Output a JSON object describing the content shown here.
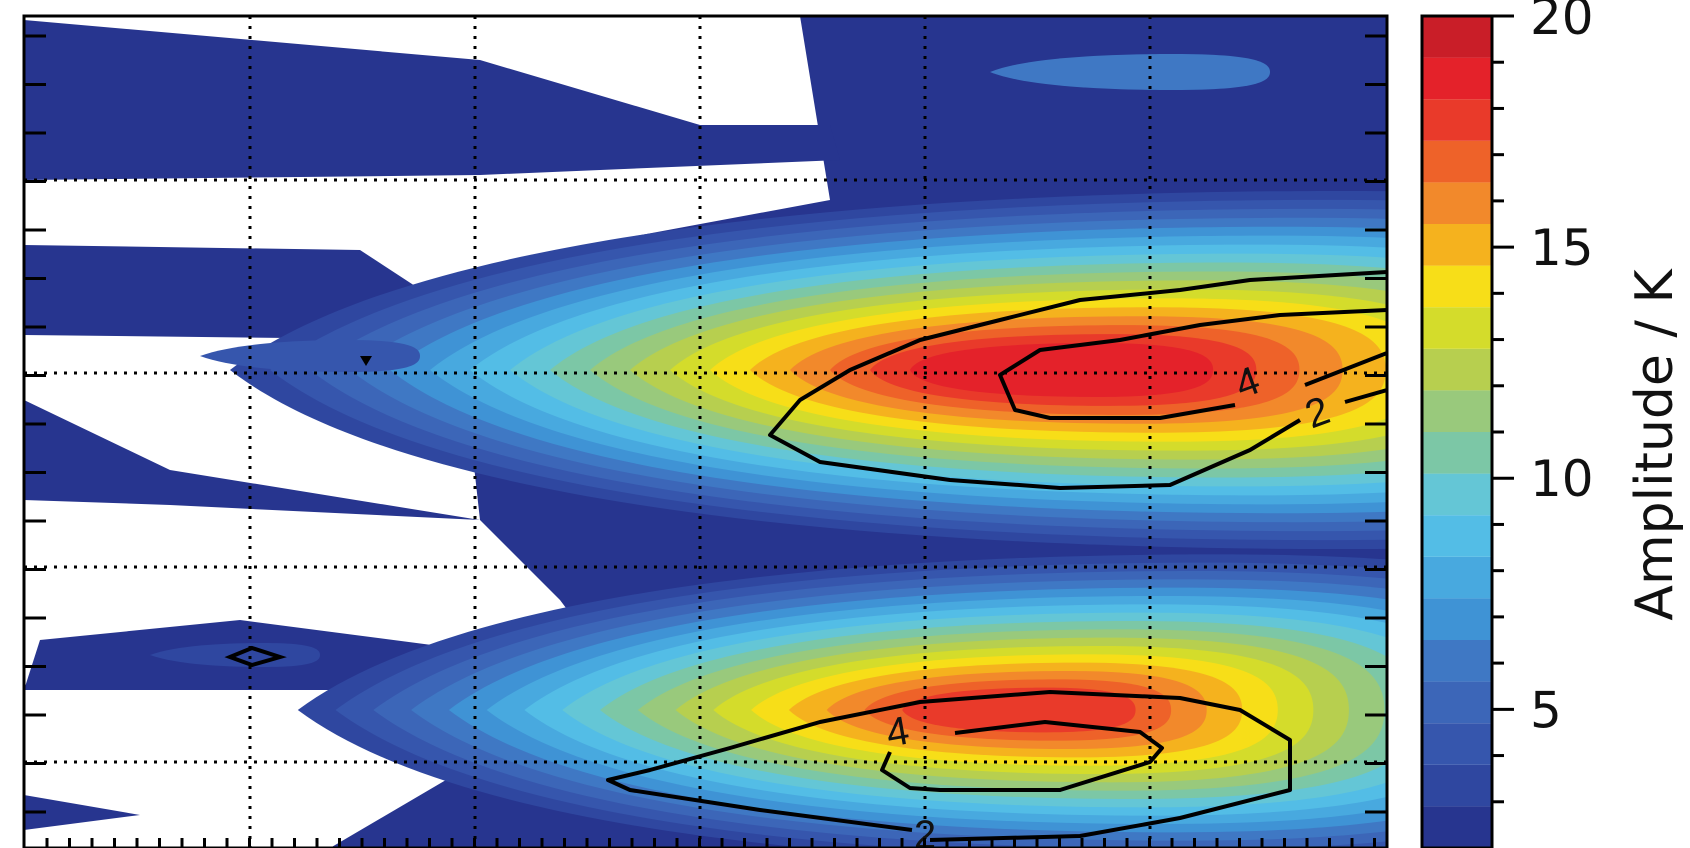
{
  "chart_data": {
    "type": "heatmap",
    "title": "",
    "xlabel": "",
    "ylabel": "",
    "grid": true,
    "colorbar": {
      "label": "Amplitude  /  K",
      "min": 2,
      "max": 20,
      "step": 1,
      "tick_labels": [
        "5",
        "10",
        "15",
        "20"
      ],
      "tick_values": [
        5,
        10,
        15,
        20
      ],
      "colors": [
        "#27358f",
        "#2f47a0",
        "#3656ad",
        "#3c66b8",
        "#3f78c4",
        "#3f93d5",
        "#48a9df",
        "#53bde6",
        "#64c6d6",
        "#7cc7a6",
        "#99c97c",
        "#b7cf4f",
        "#d4dc2b",
        "#f7de18",
        "#f5b21e",
        "#f2892b",
        "#ee6229",
        "#e93a2a",
        "#e4222a",
        "#c91e28"
      ]
    },
    "amplitude_peaks": [
      {
        "name": "upper maximum",
        "value": 19.5
      },
      {
        "name": "lower maximum",
        "value": 18.5
      }
    ],
    "contour_labels": [
      {
        "text": "4"
      },
      {
        "text": "2"
      },
      {
        "text": "4"
      },
      {
        "text": "2"
      }
    ]
  }
}
